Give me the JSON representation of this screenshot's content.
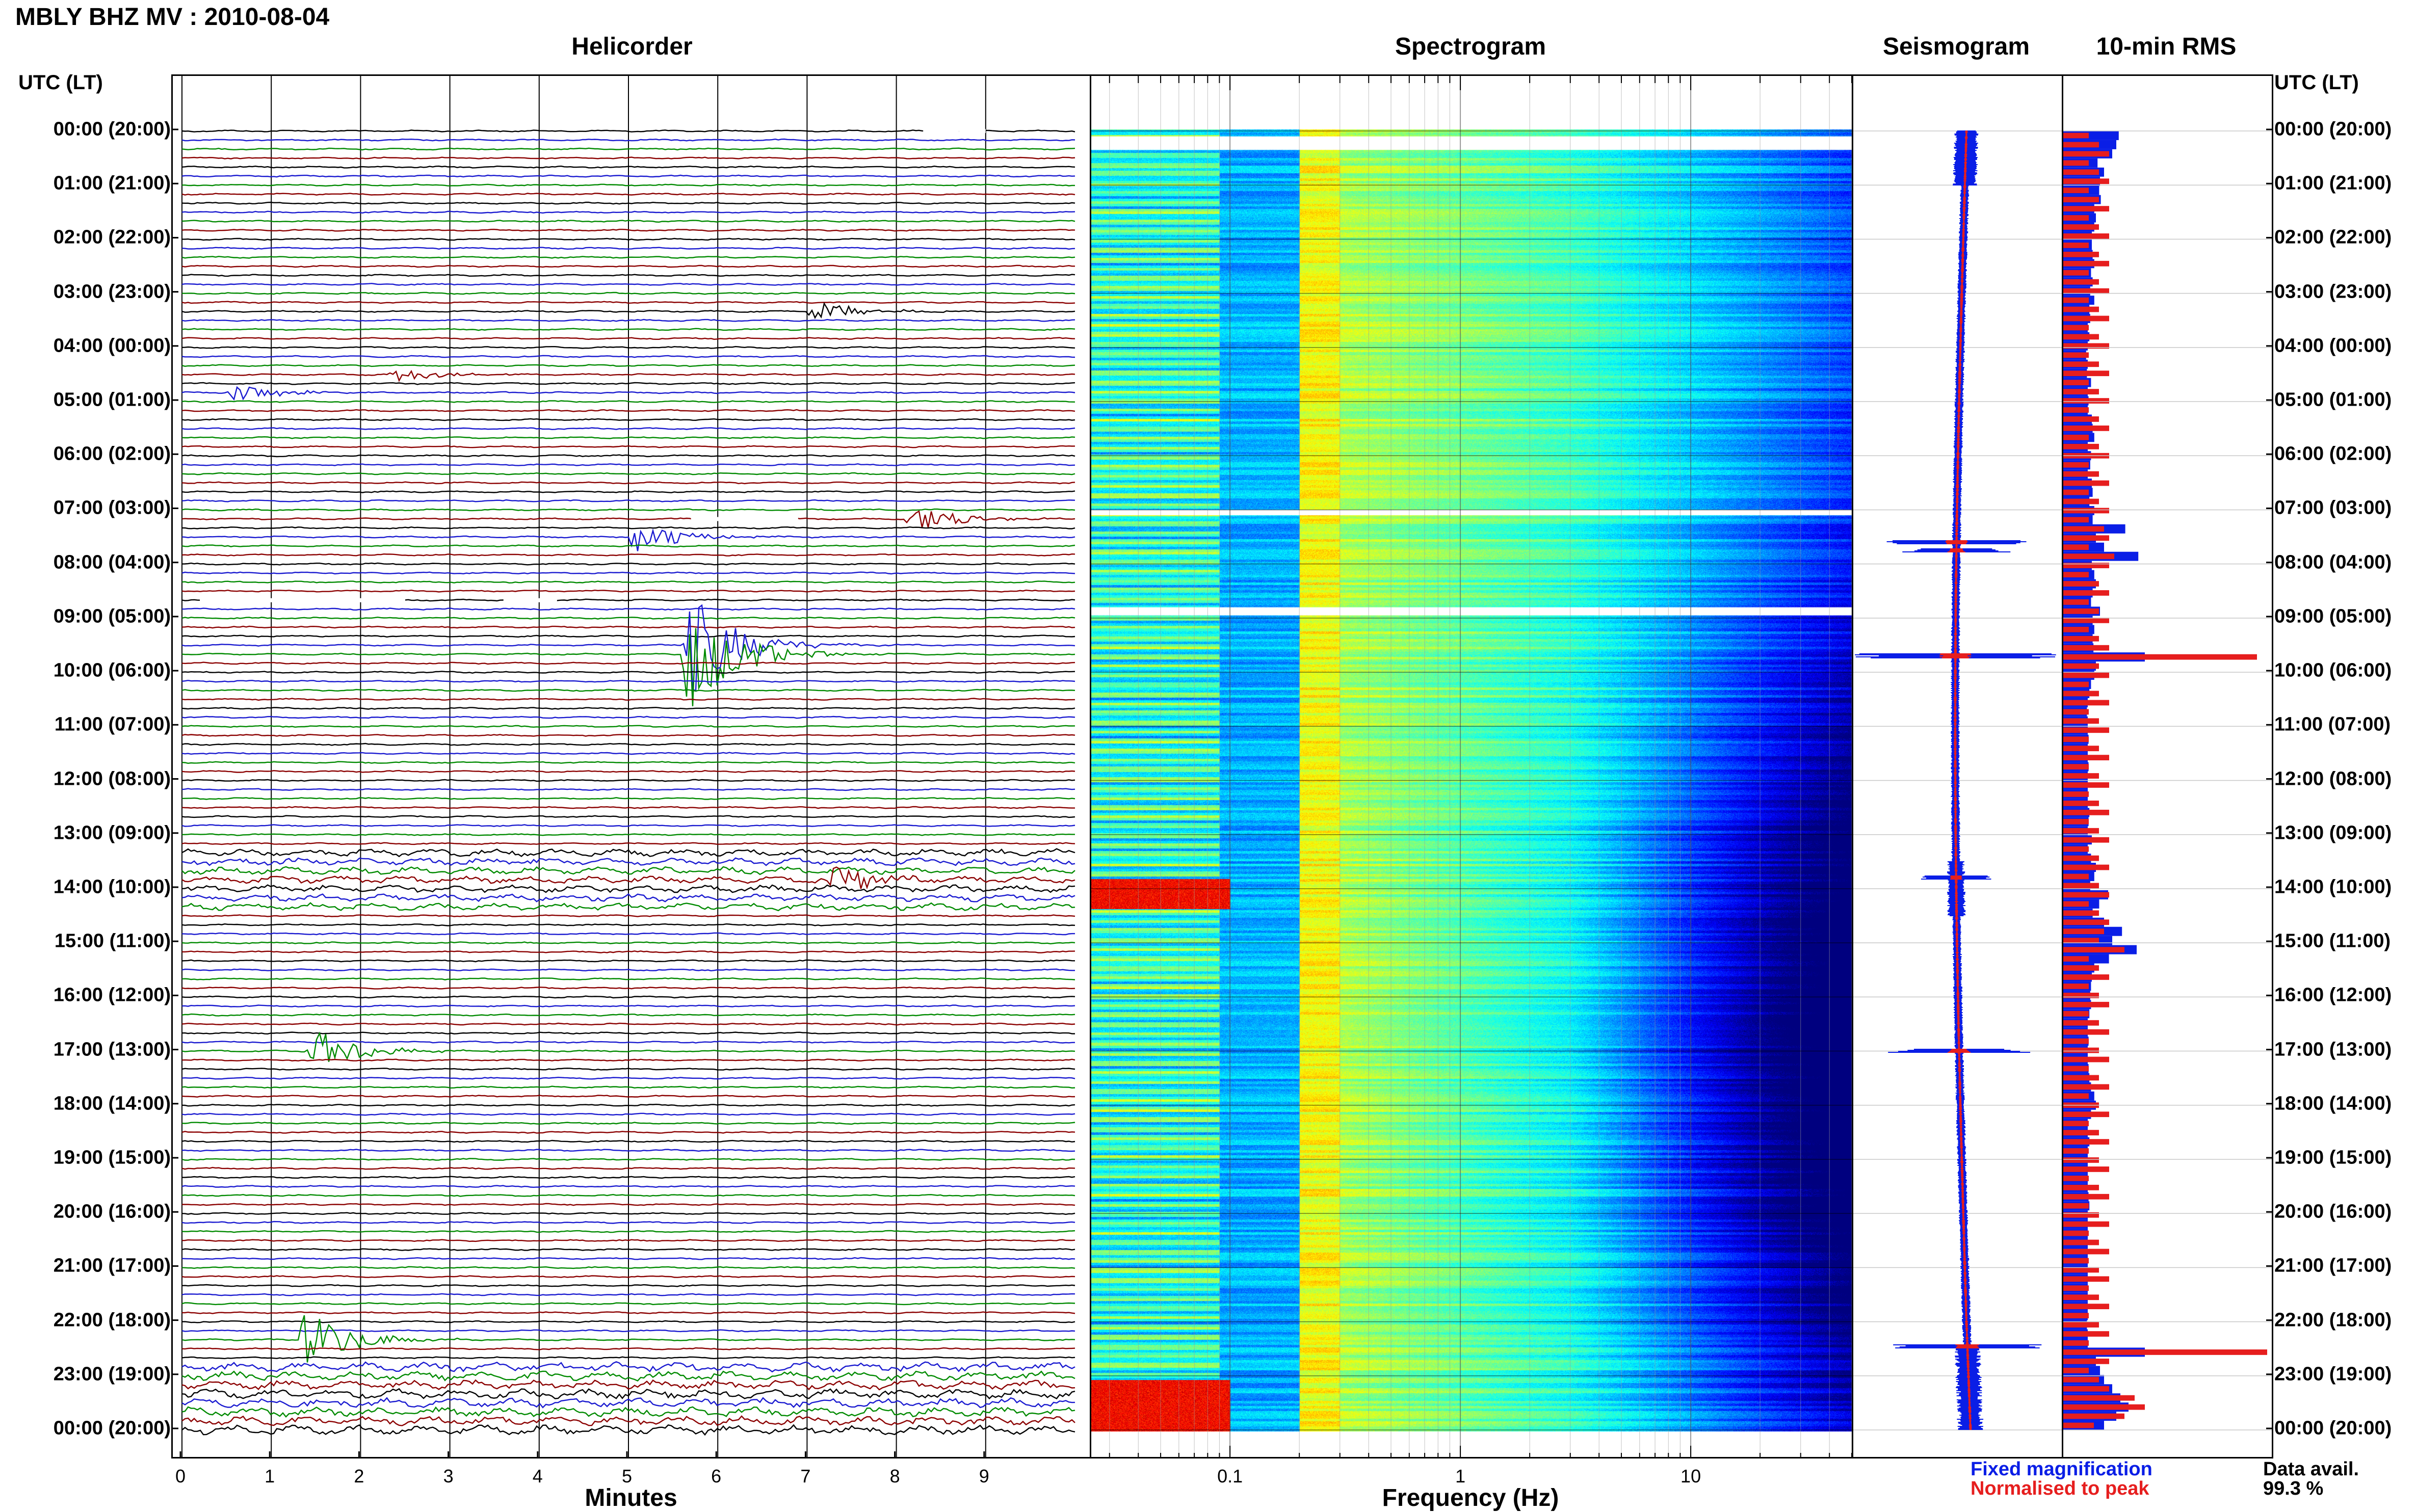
{
  "title": "MBLY BHZ MV : 2010-08-04",
  "panels": {
    "helicorder": "Helicorder",
    "spectrogram": "Spectrogram",
    "seismogram": "Seismogram",
    "rms": "10-min RMS"
  },
  "time_header": "UTC (LT)",
  "time_labels": [
    "00:00 (20:00)",
    "01:00 (21:00)",
    "02:00 (22:00)",
    "03:00 (23:00)",
    "04:00 (00:00)",
    "05:00 (01:00)",
    "06:00 (02:00)",
    "07:00 (03:00)",
    "08:00 (04:00)",
    "09:00 (05:00)",
    "10:00 (06:00)",
    "11:00 (07:00)",
    "12:00 (08:00)",
    "13:00 (09:00)",
    "14:00 (10:00)",
    "15:00 (11:00)",
    "16:00 (12:00)",
    "17:00 (13:00)",
    "18:00 (14:00)",
    "19:00 (15:00)",
    "20:00 (16:00)",
    "21:00 (17:00)",
    "22:00 (18:00)",
    "23:00 (19:00)",
    "00:00 (20:00)"
  ],
  "legend": {
    "fixed": "Fixed magnification",
    "normalised": "Normalised to peak",
    "fixed_color": "#0a1ee6",
    "normalised_color": "#e61e1e"
  },
  "data_availability": {
    "label": "Data avail.",
    "value": "99.3 %"
  },
  "chart_data": [
    {
      "type": "line",
      "name": "Helicorder",
      "xlabel": "Minutes",
      "xticks": [
        0,
        1,
        2,
        3,
        4,
        5,
        6,
        7,
        8,
        9
      ],
      "xlim": [
        0,
        10
      ],
      "ylim_hours": [
        0,
        24
      ],
      "trace_colors": [
        "#000000",
        "#1a1ad0",
        "#008a00",
        "#8b0000"
      ],
      "events": [
        {
          "hour": 3.33,
          "minute": 7.0,
          "amp": 0.4,
          "color": "#000000"
        },
        {
          "hour": 4.5,
          "minute": 2.3,
          "amp": 0.3,
          "color": "#008a00"
        },
        {
          "hour": 4.83,
          "minute": 0.5,
          "amp": 0.35,
          "color": "#8b0000"
        },
        {
          "hour": 7.17,
          "minute": 8.1,
          "amp": 0.6,
          "color": "#008a00"
        },
        {
          "hour": 7.5,
          "minute": 5.0,
          "amp": 0.7,
          "color": "#8b0000"
        },
        {
          "hour": 9.5,
          "minute": 5.6,
          "amp": 2.2,
          "color": "#8b0000"
        },
        {
          "hour": 9.67,
          "minute": 5.6,
          "amp": 2.6,
          "color": "#1a1ad0"
        },
        {
          "hour": 13.83,
          "minute": 7.2,
          "amp": 0.6,
          "color": "#1a1ad0"
        },
        {
          "hour": 17.0,
          "minute": 1.4,
          "amp": 0.9,
          "color": "#1a1ad0"
        },
        {
          "hour": 22.33,
          "minute": 1.3,
          "amp": 1.2,
          "color": "#1a1ad0"
        }
      ]
    },
    {
      "type": "heatmap",
      "name": "Spectrogram",
      "xlabel": "Frequency (Hz)",
      "xscale": "log",
      "xlim": [
        0.025,
        50
      ],
      "xticks": [
        0.1,
        1,
        10
      ],
      "xtick_labels": [
        "0.1",
        "1",
        "10"
      ],
      "ylim_hours": [
        0,
        24
      ]
    },
    {
      "type": "line",
      "name": "Seismogram",
      "ylim_hours": [
        0,
        24
      ],
      "series": [
        {
          "name": "Fixed magnification",
          "color": "#0a1ee6"
        },
        {
          "name": "Normalised to peak",
          "color": "#e61e1e"
        }
      ]
    },
    {
      "type": "bar",
      "name": "10-min RMS",
      "orientation": "horizontal",
      "bins_minutes": 10,
      "ylim_hours": [
        0,
        24
      ],
      "fixed_values": [
        0.68,
        0.65,
        0.6,
        0.42,
        0.5,
        0.45,
        0.44,
        0.46,
        0.38,
        0.4,
        0.38,
        0.35,
        0.35,
        0.36,
        0.38,
        0.34,
        0.36,
        0.33,
        0.38,
        0.32,
        0.33,
        0.3,
        0.32,
        0.3,
        0.28,
        0.3,
        0.29,
        0.34,
        0.3,
        0.31,
        0.3,
        0.35,
        0.36,
        0.38,
        0.3,
        0.34,
        0.33,
        0.3,
        0.35,
        0.36,
        0.32,
        0.38,
        0.36,
        0.76,
        0.4,
        0.5,
        0.92,
        0.35,
        0.38,
        0.4,
        0.36,
        0.34,
        0.45,
        0.36,
        0.38,
        0.36,
        0.37,
        1.0,
        0.4,
        0.38,
        0.34,
        0.32,
        0.3,
        0.29,
        0.3,
        0.3,
        0.31,
        0.3,
        0.3,
        0.31,
        0.3,
        0.3,
        0.3,
        0.3,
        0.32,
        0.31,
        0.3,
        0.35,
        0.3,
        0.34,
        0.4,
        0.38,
        0.33,
        0.55,
        0.44,
        0.36,
        0.5,
        0.72,
        0.6,
        0.9,
        0.56,
        0.38,
        0.35,
        0.34,
        0.33,
        0.34,
        0.32,
        0.3,
        0.3,
        0.31,
        0.3,
        0.3,
        0.31,
        0.32,
        0.34,
        0.38,
        0.4,
        0.34,
        0.3,
        0.3,
        0.32,
        0.3,
        0.3,
        0.3,
        0.3,
        0.3,
        0.31,
        0.32,
        0.3,
        0.3,
        0.3,
        0.3,
        0.3,
        0.3,
        0.3,
        0.3,
        0.3,
        0.3,
        0.3,
        0.3,
        0.29,
        0.3,
        0.3,
        1.0,
        0.4,
        0.45,
        0.5,
        0.6,
        0.7,
        0.8,
        0.65,
        0.5
      ],
      "normalised_values": [
        0.1,
        0.12,
        0.1,
        0.08,
        0.09,
        0.08,
        0.08,
        0.08,
        0.07,
        0.07,
        0.07,
        0.06,
        0.06,
        0.06,
        0.07,
        0.06,
        0.06,
        0.06,
        0.07,
        0.06,
        0.06,
        0.05,
        0.06,
        0.05,
        0.05,
        0.05,
        0.05,
        0.06,
        0.05,
        0.05,
        0.05,
        0.06,
        0.06,
        0.07,
        0.05,
        0.06,
        0.06,
        0.05,
        0.06,
        0.06,
        0.06,
        0.07,
        0.06,
        0.2,
        0.07,
        0.09,
        0.25,
        0.06,
        0.07,
        0.07,
        0.06,
        0.06,
        0.08,
        0.06,
        0.07,
        0.06,
        0.06,
        0.95,
        0.07,
        0.07,
        0.06,
        0.06,
        0.05,
        0.05,
        0.05,
        0.05,
        0.05,
        0.05,
        0.05,
        0.05,
        0.05,
        0.05,
        0.05,
        0.05,
        0.06,
        0.05,
        0.05,
        0.06,
        0.05,
        0.06,
        0.07,
        0.07,
        0.06,
        0.1,
        0.08,
        0.06,
        0.09,
        0.2,
        0.15,
        0.3,
        0.1,
        0.07,
        0.06,
        0.06,
        0.06,
        0.06,
        0.06,
        0.05,
        0.05,
        0.05,
        0.05,
        0.05,
        0.05,
        0.06,
        0.06,
        0.07,
        0.07,
        0.06,
        0.05,
        0.05,
        0.06,
        0.05,
        0.05,
        0.05,
        0.05,
        0.05,
        0.05,
        0.06,
        0.05,
        0.05,
        0.05,
        0.05,
        0.05,
        0.05,
        0.05,
        0.05,
        0.05,
        0.05,
        0.05,
        0.05,
        0.05,
        0.05,
        0.05,
        1.0,
        0.1,
        0.12,
        0.15,
        0.2,
        0.35,
        0.4,
        0.3,
        0.15
      ]
    }
  ]
}
